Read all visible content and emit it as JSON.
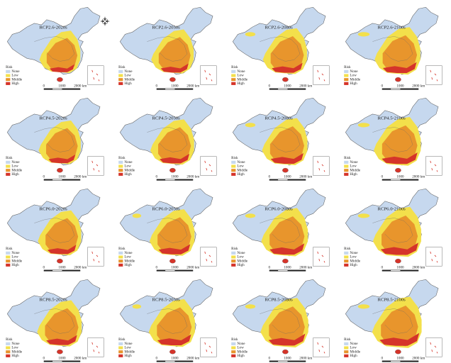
{
  "panels": [
    {
      "title": "RCP2.6-2020s"
    },
    {
      "title": "RCP2.6-2050s"
    },
    {
      "title": "RCP2.6-2080s"
    },
    {
      "title": "RCP2.6-2100s"
    },
    {
      "title": "RCP4.5-2020s"
    },
    {
      "title": "RCP4.5-2050s"
    },
    {
      "title": "RCP4.5-2080s"
    },
    {
      "title": "RCP4.5-2100s"
    },
    {
      "title": "RCP6.0-2020s"
    },
    {
      "title": "RCP6.0-2050s"
    },
    {
      "title": "RCP6.0-2080s"
    },
    {
      "title": "RCP6.0-2100s"
    },
    {
      "title": "RCP8.5-2020s"
    },
    {
      "title": "RCP8.5-2050s"
    },
    {
      "title": "RCP8.5-2080s"
    },
    {
      "title": "RCP8.5-2100s"
    }
  ],
  "legend": {
    "title": "Risk",
    "items": [
      {
        "label": "None",
        "color": "#c6d8ee"
      },
      {
        "label": "Low",
        "color": "#f3e04b"
      },
      {
        "label": "Middle",
        "color": "#e8952c"
      },
      {
        "label": "High",
        "color": "#d5342a"
      }
    ]
  },
  "scale_bar": {
    "labels": [
      "0",
      "1000",
      "2000 km"
    ]
  }
}
